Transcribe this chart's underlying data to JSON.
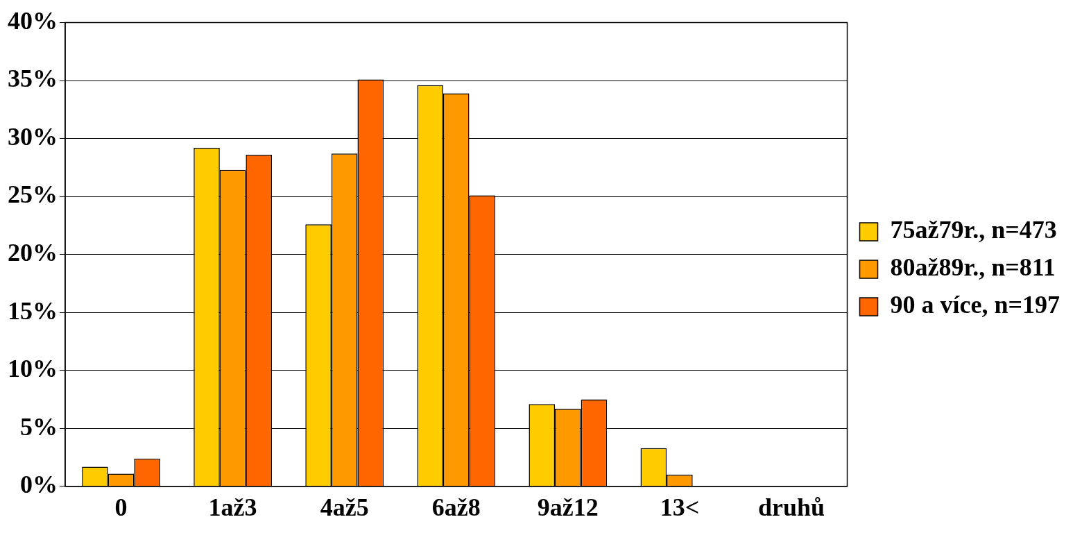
{
  "chart_data": {
    "type": "bar",
    "categories": [
      "0",
      "1až3",
      "4až5",
      "6až8",
      "9až12",
      "13<",
      "druhů"
    ],
    "series": [
      {
        "name": "75až79r., n=473",
        "color": "#ffcc00",
        "values": [
          1.7,
          29.2,
          22.6,
          34.6,
          7.1,
          3.3,
          null
        ]
      },
      {
        "name": "80až89r., n=811",
        "color": "#ff9900",
        "values": [
          1.1,
          27.3,
          28.7,
          33.9,
          6.7,
          1.0,
          null
        ]
      },
      {
        "name": "90 a více, n=197",
        "color": "#ff6600",
        "values": [
          2.4,
          28.6,
          35.1,
          25.1,
          7.5,
          0,
          null
        ]
      }
    ],
    "ylim": [
      0,
      40
    ],
    "yticks": [
      {
        "value": 0,
        "label": "0%"
      },
      {
        "value": 5,
        "label": "5%"
      },
      {
        "value": 10,
        "label": "10%"
      },
      {
        "value": 15,
        "label": "15%"
      },
      {
        "value": 20,
        "label": "20%"
      },
      {
        "value": 25,
        "label": "25%"
      },
      {
        "value": 30,
        "label": "30%"
      },
      {
        "value": 35,
        "label": "35%"
      },
      {
        "value": 40,
        "label": "40%"
      }
    ],
    "grid": "y",
    "legend": "right"
  }
}
